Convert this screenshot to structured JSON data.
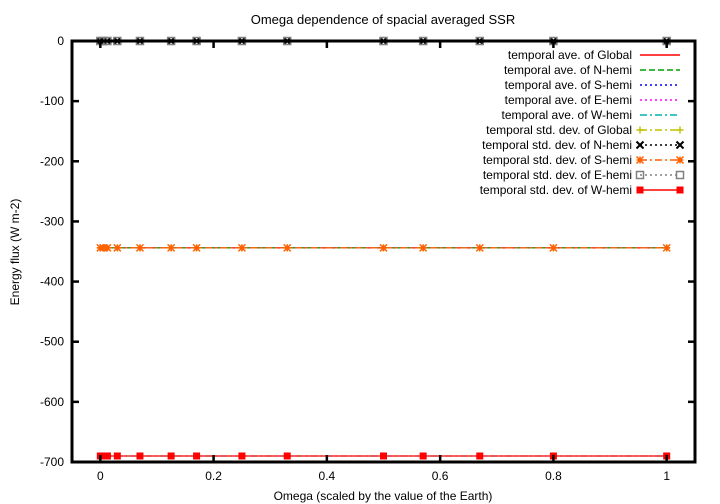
{
  "chart_data": {
    "type": "line",
    "title": "Omega dependence of spacial averaged SSR",
    "xlabel": "Omega (scaled by the value of the Earth)",
    "ylabel": "Energy flux (W m-2)",
    "xlim": [
      -0.05,
      1.05
    ],
    "ylim": [
      -700,
      0
    ],
    "xticks": [
      0,
      0.2,
      0.4,
      0.6,
      0.8,
      1
    ],
    "xtick_labels": [
      "0",
      "0.2",
      "0.4",
      "0.6",
      "0.8",
      "1"
    ],
    "yticks": [
      -700,
      -600,
      -500,
      -400,
      -300,
      -200,
      -100,
      0
    ],
    "ytick_labels": [
      "-700",
      "-600",
      "-500",
      "-400",
      "-300",
      "-200",
      "-100",
      "0"
    ],
    "grid": false,
    "legend_position": "top-right",
    "x": [
      0,
      0.005,
      0.0125,
      0.03,
      0.07,
      0.125,
      0.17,
      0.25,
      0.33,
      0.5,
      0.57,
      0.67,
      0.8,
      1.0
    ],
    "series": [
      {
        "name": "temporal ave. of Global",
        "color": "#ff0000",
        "dash": "solid",
        "marker": "none",
        "values": [
          -344,
          -344,
          -344,
          -344,
          -344,
          -344,
          -344,
          -344,
          -344,
          -344,
          -344,
          -344,
          -344,
          -344
        ]
      },
      {
        "name": "temporal ave. of N-hemi",
        "color": "#00a000",
        "dash": "dashed",
        "marker": "none",
        "values": [
          -344,
          -344,
          -344,
          -344,
          -344,
          -344,
          -344,
          -344,
          -344,
          -344,
          -344,
          -344,
          -344,
          -344
        ]
      },
      {
        "name": "temporal ave. of S-hemi",
        "color": "#0000ff",
        "dash": "dotted",
        "marker": "none",
        "values": [
          -344,
          -344,
          -344,
          -344,
          -344,
          -344,
          -344,
          -344,
          -344,
          -344,
          -344,
          -344,
          -344,
          -344
        ]
      },
      {
        "name": "temporal ave. of E-hemi",
        "color": "#ff00ff",
        "dash": "dotted",
        "marker": "none",
        "values": [
          -344,
          -344,
          -344,
          -344,
          -344,
          -344,
          -344,
          -344,
          -344,
          -344,
          -344,
          -344,
          -344,
          -344
        ]
      },
      {
        "name": "temporal ave. of W-hemi",
        "color": "#00b0b0",
        "dash": "dashdot",
        "marker": "none",
        "values": [
          -690,
          -690,
          -690,
          -690,
          -690,
          -690,
          -690,
          -690,
          -690,
          -690,
          -690,
          -690,
          -690,
          -690
        ]
      },
      {
        "name": "temporal std. dev. of Global",
        "color": "#c0c000",
        "dash": "dashdot",
        "marker": "plus",
        "values": [
          -344,
          -344,
          -344,
          -344,
          -344,
          -344,
          -344,
          -344,
          -344,
          -344,
          -344,
          -344,
          -344,
          -344
        ]
      },
      {
        "name": "temporal std. dev. of N-hemi",
        "color": "#000000",
        "dash": "dotted",
        "marker": "cross",
        "values": [
          0,
          0,
          0,
          0,
          0,
          0,
          0,
          0,
          0,
          0,
          0,
          0,
          0,
          0
        ]
      },
      {
        "name": "temporal std. dev. of S-hemi",
        "color": "#ff6000",
        "dash": "dashdot",
        "marker": "star",
        "values": [
          -344,
          -344,
          -344,
          -344,
          -344,
          -344,
          -344,
          -344,
          -344,
          -344,
          -344,
          -344,
          -344,
          -344
        ]
      },
      {
        "name": "temporal std. dev. of E-hemi",
        "color": "#808080",
        "dash": "dotted",
        "marker": "box",
        "values": [
          0,
          0,
          0,
          0,
          0,
          0,
          0,
          0,
          0,
          0,
          0,
          0,
          0,
          0
        ]
      },
      {
        "name": "temporal std. dev. of W-hemi",
        "color": "#ff0000",
        "dash": "solid",
        "marker": "filledbox",
        "values": [
          -690,
          -690,
          -690,
          -690,
          -690,
          -690,
          -690,
          -690,
          -690,
          -690,
          -690,
          -690,
          -690,
          -690
        ]
      }
    ]
  }
}
